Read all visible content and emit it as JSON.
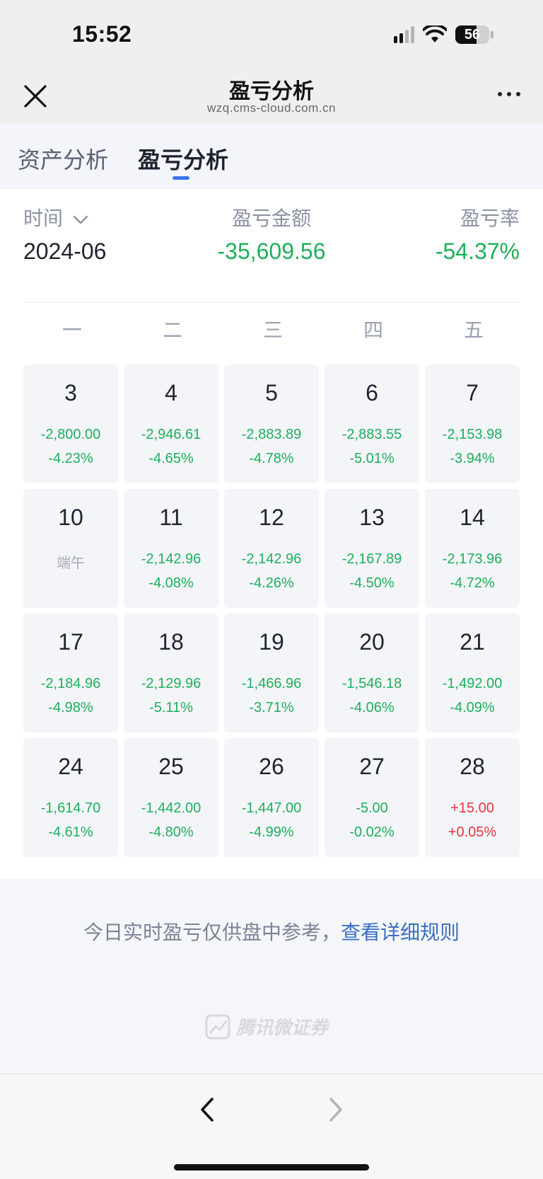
{
  "status": {
    "time": "15:52",
    "battery": "56"
  },
  "header": {
    "title": "盈亏分析",
    "subtitle": "wzq.cms-cloud.com.cn"
  },
  "tabs": [
    {
      "label": "资产分析"
    },
    {
      "label": "盈亏分析"
    }
  ],
  "summary": {
    "time_label": "时间",
    "time_value": "2024-06",
    "amount_label": "盈亏金额",
    "amount_value": "-35,609.56",
    "rate_label": "盈亏率",
    "rate_value": "-54.37%"
  },
  "weekdays": [
    "一",
    "二",
    "三",
    "四",
    "五"
  ],
  "calendar": [
    {
      "day": "3",
      "amount": "-2,800.00",
      "pct": "-4.23%",
      "holiday": ""
    },
    {
      "day": "4",
      "amount": "-2,946.61",
      "pct": "-4.65%",
      "holiday": ""
    },
    {
      "day": "5",
      "amount": "-2,883.89",
      "pct": "-4.78%",
      "holiday": ""
    },
    {
      "day": "6",
      "amount": "-2,883.55",
      "pct": "-5.01%",
      "holiday": ""
    },
    {
      "day": "7",
      "amount": "-2,153.98",
      "pct": "-3.94%",
      "holiday": ""
    },
    {
      "day": "10",
      "amount": "",
      "pct": "",
      "holiday": "端午"
    },
    {
      "day": "11",
      "amount": "-2,142.96",
      "pct": "-4.08%",
      "holiday": ""
    },
    {
      "day": "12",
      "amount": "-2,142.96",
      "pct": "-4.26%",
      "holiday": ""
    },
    {
      "day": "13",
      "amount": "-2,167.89",
      "pct": "-4.50%",
      "holiday": ""
    },
    {
      "day": "14",
      "amount": "-2,173.96",
      "pct": "-4.72%",
      "holiday": ""
    },
    {
      "day": "17",
      "amount": "-2,184.96",
      "pct": "-4.98%",
      "holiday": ""
    },
    {
      "day": "18",
      "amount": "-2,129.96",
      "pct": "-5.11%",
      "holiday": ""
    },
    {
      "day": "19",
      "amount": "-1,466.96",
      "pct": "-3.71%",
      "holiday": ""
    },
    {
      "day": "20",
      "amount": "-1,546.18",
      "pct": "-4.06%",
      "holiday": ""
    },
    {
      "day": "21",
      "amount": "-1,492.00",
      "pct": "-4.09%",
      "holiday": ""
    },
    {
      "day": "24",
      "amount": "-1,614.70",
      "pct": "-4.61%",
      "holiday": ""
    },
    {
      "day": "25",
      "amount": "-1,442.00",
      "pct": "-4.80%",
      "holiday": ""
    },
    {
      "day": "26",
      "amount": "-1,447.00",
      "pct": "-4.99%",
      "holiday": ""
    },
    {
      "day": "27",
      "amount": "-5.00",
      "pct": "-0.02%",
      "holiday": ""
    },
    {
      "day": "28",
      "amount": "+15.00",
      "pct": "+0.05%",
      "holiday": ""
    }
  ],
  "footer": {
    "note_text": "今日实时盈亏仅供盘中参考，",
    "note_link": "查看详细规则",
    "brand": "腾讯微证券"
  },
  "colors": {
    "loss": "#1db05a",
    "gain": "#e8353c",
    "accent": "#3a74e8"
  },
  "icons": [
    "close-icon",
    "more-icon",
    "chevron-down-icon",
    "back-icon",
    "forward-icon"
  ]
}
